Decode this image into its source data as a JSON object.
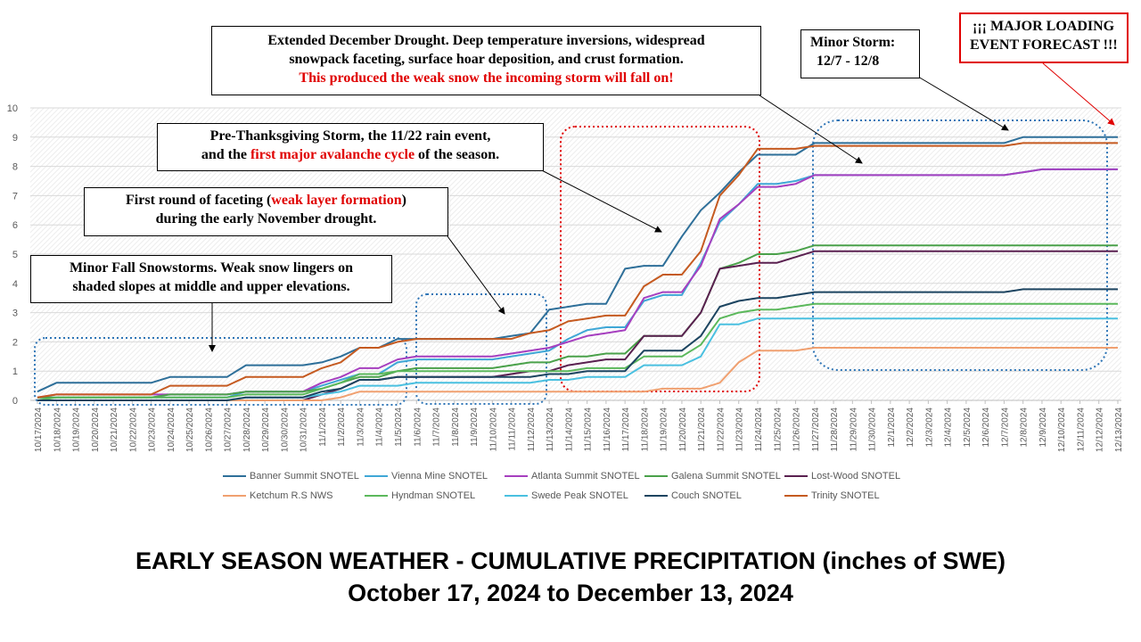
{
  "chart_data": {
    "type": "line",
    "title": "EARLY SEASON WEATHER  -  CUMULATIVE PRECIPITATION (inches of SWE)",
    "subtitle": "October 17, 2024 to December 13, 2024",
    "xlabel": "",
    "ylabel": "",
    "ylim": [
      0,
      10
    ],
    "yticks": [
      "0",
      "1",
      "2",
      "3",
      "4",
      "5",
      "6",
      "7",
      "8",
      "9",
      "10"
    ],
    "legend_position": "bottom",
    "categories": [
      "10/17/2024",
      "10/18/2024",
      "10/19/2024",
      "10/20/2024",
      "10/21/2024",
      "10/22/2024",
      "10/23/2024",
      "10/24/2024",
      "10/25/2024",
      "10/26/2024",
      "10/27/2024",
      "10/28/2024",
      "10/29/2024",
      "10/30/2024",
      "10/31/2024",
      "11/1/2024",
      "11/2/2024",
      "11/3/2024",
      "11/4/2024",
      "11/5/2024",
      "11/6/2024",
      "11/7/2024",
      "11/8/2024",
      "11/9/2024",
      "11/10/2024",
      "11/11/2024",
      "11/12/2024",
      "11/13/2024",
      "11/14/2024",
      "11/15/2024",
      "11/16/2024",
      "11/17/2024",
      "11/18/2024",
      "11/19/2024",
      "11/20/2024",
      "11/21/2024",
      "11/22/2024",
      "11/23/2024",
      "11/24/2024",
      "11/25/2024",
      "11/26/2024",
      "11/27/2024",
      "11/28/2024",
      "11/29/2024",
      "11/30/2024",
      "12/1/2024",
      "12/2/2024",
      "12/3/2024",
      "12/4/2024",
      "12/5/2024",
      "12/6/2024",
      "12/7/2024",
      "12/8/2024",
      "12/9/2024",
      "12/10/2024",
      "12/11/2024",
      "12/12/2024",
      "12/13/2024"
    ],
    "series": [
      {
        "name": "Banner Summit SNOTEL",
        "color": "#2e6f99",
        "values": [
          0.3,
          0.6,
          0.6,
          0.6,
          0.6,
          0.6,
          0.6,
          0.8,
          0.8,
          0.8,
          0.8,
          1.2,
          1.2,
          1.2,
          1.2,
          1.3,
          1.5,
          1.8,
          1.8,
          2.1,
          2.1,
          2.1,
          2.1,
          2.1,
          2.1,
          2.2,
          2.3,
          3.1,
          3.2,
          3.3,
          3.3,
          4.5,
          4.6,
          4.6,
          5.6,
          6.5,
          7.1,
          7.8,
          8.4,
          8.4,
          8.4,
          8.8,
          8.8,
          8.8,
          8.8,
          8.8,
          8.8,
          8.8,
          8.8,
          8.8,
          8.8,
          8.8,
          9.0,
          9.0,
          9.0,
          9.0,
          9.0,
          9.0
        ]
      },
      {
        "name": "Vienna Mine SNOTEL",
        "color": "#3fa7d6",
        "values": [
          0.1,
          0.1,
          0.1,
          0.1,
          0.1,
          0.1,
          0.1,
          0.1,
          0.1,
          0.1,
          0.1,
          0.3,
          0.3,
          0.3,
          0.3,
          0.5,
          0.7,
          0.9,
          0.9,
          1.3,
          1.4,
          1.4,
          1.4,
          1.4,
          1.4,
          1.5,
          1.6,
          1.7,
          2.1,
          2.4,
          2.5,
          2.5,
          3.4,
          3.6,
          3.6,
          4.7,
          6.1,
          6.7,
          7.4,
          7.4,
          7.5,
          7.7,
          7.7,
          7.7,
          7.7,
          7.7,
          7.7,
          7.7,
          7.7,
          7.7,
          7.7,
          7.7,
          7.8,
          7.9,
          7.9,
          7.9,
          7.9,
          7.9
        ]
      },
      {
        "name": "Atlanta Summit SNOTEL",
        "color": "#a63fbf",
        "values": [
          0.1,
          0.2,
          0.2,
          0.2,
          0.2,
          0.2,
          0.2,
          0.2,
          0.2,
          0.2,
          0.2,
          0.3,
          0.3,
          0.3,
          0.3,
          0.6,
          0.8,
          1.1,
          1.1,
          1.4,
          1.5,
          1.5,
          1.5,
          1.5,
          1.5,
          1.6,
          1.7,
          1.8,
          2.0,
          2.2,
          2.3,
          2.4,
          3.5,
          3.7,
          3.7,
          4.6,
          6.2,
          6.7,
          7.3,
          7.3,
          7.4,
          7.7,
          7.7,
          7.7,
          7.7,
          7.7,
          7.7,
          7.7,
          7.7,
          7.7,
          7.7,
          7.7,
          7.8,
          7.9,
          7.9,
          7.9,
          7.9,
          7.9
        ]
      },
      {
        "name": "Galena Summit SNOTEL",
        "color": "#4aa14a",
        "values": [
          0.1,
          0.1,
          0.1,
          0.1,
          0.1,
          0.1,
          0.1,
          0.2,
          0.2,
          0.2,
          0.2,
          0.3,
          0.3,
          0.3,
          0.3,
          0.4,
          0.6,
          0.8,
          0.8,
          1.0,
          1.1,
          1.1,
          1.1,
          1.1,
          1.1,
          1.2,
          1.3,
          1.3,
          1.5,
          1.5,
          1.6,
          1.6,
          2.2,
          2.2,
          2.2,
          3.0,
          4.5,
          4.7,
          5.0,
          5.0,
          5.1,
          5.3,
          5.3,
          5.3,
          5.3,
          5.3,
          5.3,
          5.3,
          5.3,
          5.3,
          5.3,
          5.3,
          5.3,
          5.3,
          5.3,
          5.3,
          5.3,
          5.3
        ]
      },
      {
        "name": "Lost-Wood SNOTEL",
        "color": "#5a2050",
        "values": [
          0.0,
          0.0,
          0.0,
          0.0,
          0.0,
          0.0,
          0.0,
          0.0,
          0.0,
          0.0,
          0.0,
          0.0,
          0.0,
          0.0,
          0.0,
          0.2,
          0.4,
          0.7,
          0.7,
          0.8,
          0.8,
          0.8,
          0.8,
          0.8,
          0.8,
          0.9,
          1.0,
          1.0,
          1.2,
          1.3,
          1.4,
          1.4,
          2.2,
          2.2,
          2.2,
          3.0,
          4.5,
          4.6,
          4.7,
          4.7,
          4.9,
          5.1,
          5.1,
          5.1,
          5.1,
          5.1,
          5.1,
          5.1,
          5.1,
          5.1,
          5.1,
          5.1,
          5.1,
          5.1,
          5.1,
          5.1,
          5.1,
          5.1
        ]
      },
      {
        "name": "Ketchum R.S NWS",
        "color": "#f0a070",
        "values": [
          0.0,
          0.0,
          0.0,
          0.0,
          0.0,
          0.0,
          0.0,
          0.0,
          0.0,
          0.0,
          0.0,
          0.0,
          0.0,
          0.0,
          0.0,
          0.0,
          0.1,
          0.3,
          0.3,
          0.3,
          0.3,
          0.3,
          0.3,
          0.3,
          0.3,
          0.3,
          0.3,
          0.3,
          0.3,
          0.3,
          0.3,
          0.3,
          0.3,
          0.4,
          0.4,
          0.4,
          0.6,
          1.3,
          1.7,
          1.7,
          1.7,
          1.8,
          1.8,
          1.8,
          1.8,
          1.8,
          1.8,
          1.8,
          1.8,
          1.8,
          1.8,
          1.8,
          1.8,
          1.8,
          1.8,
          1.8,
          1.8,
          1.8
        ]
      },
      {
        "name": "Hyndman SNOTEL",
        "color": "#5bb85b",
        "values": [
          0.0,
          0.1,
          0.1,
          0.1,
          0.1,
          0.1,
          0.1,
          0.1,
          0.1,
          0.1,
          0.1,
          0.2,
          0.2,
          0.2,
          0.2,
          0.4,
          0.6,
          0.9,
          0.9,
          1.0,
          1.0,
          1.0,
          1.0,
          1.0,
          1.0,
          1.0,
          1.0,
          1.0,
          1.0,
          1.1,
          1.1,
          1.1,
          1.5,
          1.5,
          1.5,
          1.9,
          2.8,
          3.0,
          3.1,
          3.1,
          3.2,
          3.3,
          3.3,
          3.3,
          3.3,
          3.3,
          3.3,
          3.3,
          3.3,
          3.3,
          3.3,
          3.3,
          3.3,
          3.3,
          3.3,
          3.3,
          3.3,
          3.3
        ]
      },
      {
        "name": "Swede Peak SNOTEL",
        "color": "#4ac0e0",
        "values": [
          0.0,
          0.0,
          0.0,
          0.0,
          0.0,
          0.0,
          0.0,
          0.0,
          0.0,
          0.0,
          0.0,
          0.1,
          0.1,
          0.1,
          0.1,
          0.2,
          0.3,
          0.5,
          0.5,
          0.5,
          0.6,
          0.6,
          0.6,
          0.6,
          0.6,
          0.6,
          0.6,
          0.7,
          0.7,
          0.8,
          0.8,
          0.8,
          1.2,
          1.2,
          1.2,
          1.5,
          2.6,
          2.6,
          2.8,
          2.8,
          2.8,
          2.8,
          2.8,
          2.8,
          2.8,
          2.8,
          2.8,
          2.8,
          2.8,
          2.8,
          2.8,
          2.8,
          2.8,
          2.8,
          2.8,
          2.8,
          2.8,
          2.8
        ]
      },
      {
        "name": "Couch SNOTEL",
        "color": "#1c4460",
        "values": [
          0.0,
          0.0,
          0.0,
          0.0,
          0.0,
          0.0,
          0.0,
          0.0,
          0.0,
          0.0,
          0.0,
          0.1,
          0.1,
          0.1,
          0.1,
          0.3,
          0.4,
          0.7,
          0.7,
          0.8,
          0.8,
          0.8,
          0.8,
          0.8,
          0.8,
          0.8,
          0.8,
          0.9,
          0.9,
          1.0,
          1.0,
          1.0,
          1.7,
          1.7,
          1.7,
          2.2,
          3.2,
          3.4,
          3.5,
          3.5,
          3.6,
          3.7,
          3.7,
          3.7,
          3.7,
          3.7,
          3.7,
          3.7,
          3.7,
          3.7,
          3.7,
          3.7,
          3.8,
          3.8,
          3.8,
          3.8,
          3.8,
          3.8
        ]
      },
      {
        "name": "Trinity SNOTEL",
        "color": "#c55a20",
        "values": [
          0.1,
          0.2,
          0.2,
          0.2,
          0.2,
          0.2,
          0.2,
          0.5,
          0.5,
          0.5,
          0.5,
          0.8,
          0.8,
          0.8,
          0.8,
          1.1,
          1.3,
          1.8,
          1.8,
          2.0,
          2.1,
          2.1,
          2.1,
          2.1,
          2.1,
          2.1,
          2.3,
          2.4,
          2.7,
          2.8,
          2.9,
          2.9,
          3.9,
          4.3,
          4.3,
          5.1,
          7.0,
          7.7,
          8.6,
          8.6,
          8.6,
          8.7,
          8.7,
          8.7,
          8.7,
          8.7,
          8.7,
          8.7,
          8.7,
          8.7,
          8.7,
          8.7,
          8.8,
          8.8,
          8.8,
          8.8,
          8.8,
          8.8
        ]
      }
    ]
  },
  "annotations": {
    "drought": {
      "line1": "Extended December Drought. Deep temperature inversions, widespread",
      "line2": "snowpack faceting, surface hoar deposition, and crust formation.",
      "line3": "This produced the weak snow the incoming storm will fall on!"
    },
    "minor_storm": {
      "line1": "Minor Storm:",
      "line2": "12/7 - 12/8"
    },
    "forecast": {
      "line1": "¡¡¡ MAJOR LOADING",
      "line2": "EVENT FORECAST !!!"
    },
    "thanksgiving": {
      "line1": "Pre-Thanksgiving Storm, the 11/22 rain event,",
      "line2_a": "and the ",
      "line2_b": "first major avalanche cycle",
      "line2_c": " of the season."
    },
    "faceting": {
      "line1_a": "First round of faceting (",
      "line1_b": "weak layer formation",
      "line1_c": ")",
      "line2": "during the early November drought."
    },
    "fall_storms": {
      "line1": "Minor Fall Snowstorms. Weak snow lingers on",
      "line2": "shaded slopes at middle and upper elevations."
    }
  },
  "colors": {
    "red": "#e00000",
    "blue_dotted": "#2e75b6",
    "grid": "#d9d9d9"
  }
}
